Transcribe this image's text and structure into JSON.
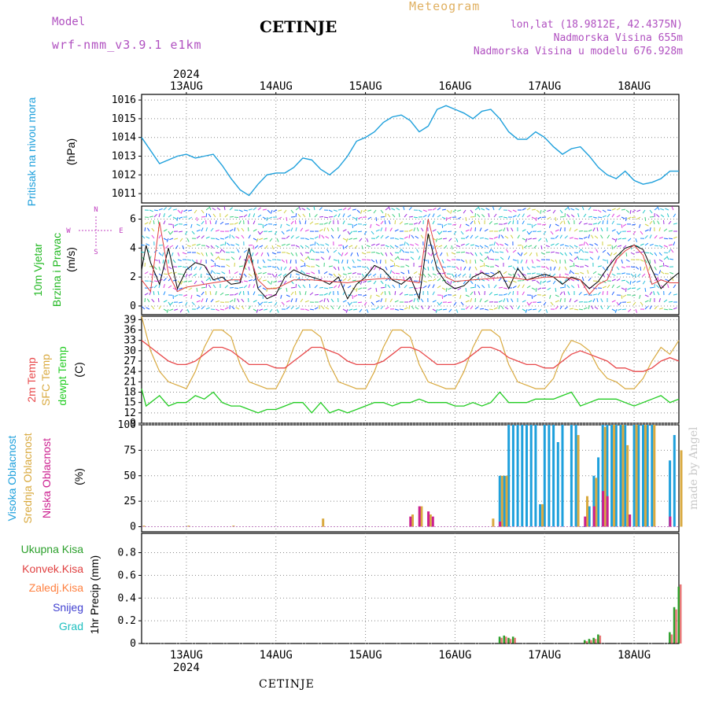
{
  "header": {
    "model_label": "Model",
    "model_name": "wrf-nmm_v3.9.1 e1km",
    "title": "CETINJE",
    "meteogram_label": "Meteogram",
    "lonlat": "lon,lat (18.9812E, 42.4375N)",
    "altitude": "Nadmorska Visina 655m",
    "model_altitude": "Nadmorska Visina u modelu 676.928m"
  },
  "footer": {
    "station": "CETINJE",
    "credit": "made by Angel"
  },
  "year": "2024",
  "dates": [
    "13AUG",
    "14AUG",
    "15AUG",
    "16AUG",
    "17AUG",
    "18AUG"
  ],
  "colors": {
    "pressure": "#1ea0dc",
    "wind_label": "#22b822",
    "temp2m": "#e8484a",
    "sfc": "#d9aa40",
    "dewpt": "#22cc22",
    "high_cloud": "#1ea0dc",
    "mid_cloud": "#d9aa40",
    "low_cloud": "#cc2090",
    "total_precip": "#2ca02c",
    "conv_precip": "#e04040",
    "frozen": "#ff8040",
    "snow": "#4040d0",
    "grad": "#20c0c0",
    "model_label": "#b050c0",
    "meteogram_label": "#e0b060",
    "credit": "#c8c8c8"
  },
  "panels": {
    "pressure": {
      "label": "Pritisak na nivou mora",
      "unit": "(hPa)",
      "ticks": [
        "1011",
        "1012",
        "1013",
        "1014",
        "1015",
        "1016"
      ]
    },
    "wind": {
      "label1": "10m Vjetar",
      "label2": "Brzina i Pravac",
      "unit": "(m/s)",
      "ticks": [
        "0",
        "2",
        "4",
        "6"
      ],
      "compass": {
        "n": "N",
        "s": "S",
        "e": "E",
        "w": "W"
      }
    },
    "temperature": {
      "label1": "2m Temp",
      "label2": "SFC Temp",
      "label3": "dewpt Temp",
      "unit": "(C)",
      "ticks": [
        "9",
        "12",
        "15",
        "18",
        "21",
        "24",
        "27",
        "30",
        "33",
        "36",
        "39"
      ]
    },
    "cloud": {
      "label1": "Visoka Oblacnost",
      "label2": "Srednja Oblacnost",
      "label3": "Niska Oblacnost",
      "unit": "(%)",
      "ticks": [
        "0",
        "25",
        "50",
        "75",
        "100"
      ]
    },
    "precip": {
      "legend": [
        "Ukupna Kisa",
        "Konvek.Kisa",
        "Zaledj.Kisa",
        "Snijeg",
        "Grad"
      ],
      "unit": "1hr Precip (mm)",
      "ticks": [
        "0",
        "0.2",
        "0.4",
        "0.6",
        "0.8"
      ]
    }
  },
  "chart_data": [
    {
      "panel": "pressure",
      "type": "line",
      "ylabel": "(hPa)",
      "ylim": [
        1010.5,
        1016.3
      ],
      "x_range_days": [
        12.5,
        18.5
      ],
      "series": [
        {
          "name": "Pritisak na nivou mora",
          "x": [
            12.5,
            12.7,
            12.9,
            13.0,
            13.1,
            13.2,
            13.3,
            13.4,
            13.5,
            13.6,
            13.7,
            13.8,
            13.9,
            14.0,
            14.1,
            14.2,
            14.3,
            14.4,
            14.5,
            14.6,
            14.7,
            14.8,
            14.9,
            15.0,
            15.1,
            15.2,
            15.3,
            15.4,
            15.5,
            15.6,
            15.7,
            15.8,
            15.9,
            16.0,
            16.1,
            16.2,
            16.3,
            16.4,
            16.5,
            16.6,
            16.7,
            16.8,
            16.9,
            17.0,
            17.1,
            17.2,
            17.3,
            17.4,
            17.5,
            17.6,
            17.7,
            17.8,
            17.9,
            18.0,
            18.1,
            18.2,
            18.3,
            18.4,
            18.5
          ],
          "values": [
            1014.0,
            1012.6,
            1013.0,
            1013.1,
            1012.9,
            1013.0,
            1013.1,
            1012.5,
            1011.8,
            1011.2,
            1010.9,
            1011.5,
            1012.0,
            1012.1,
            1012.1,
            1012.4,
            1012.9,
            1012.8,
            1012.3,
            1012.0,
            1012.4,
            1013.0,
            1013.8,
            1014.0,
            1014.3,
            1014.8,
            1015.1,
            1015.2,
            1014.9,
            1014.3,
            1014.6,
            1015.5,
            1015.7,
            1015.5,
            1015.3,
            1015.0,
            1015.4,
            1015.5,
            1015.0,
            1014.3,
            1013.9,
            1013.9,
            1014.3,
            1014.0,
            1013.5,
            1013.1,
            1013.4,
            1013.5,
            1013.0,
            1012.4,
            1012.0,
            1011.8,
            1012.2,
            1011.7,
            1011.5,
            1011.6,
            1011.8,
            1012.2,
            1012.2
          ]
        }
      ]
    },
    {
      "panel": "wind",
      "type": "line",
      "ylabel": "(m/s)",
      "ylim": [
        -0.6,
        6.9
      ],
      "series": [
        {
          "name": "model",
          "x": [
            12.5,
            12.55,
            12.6,
            12.7,
            12.8,
            12.9,
            13.0,
            13.1,
            13.2,
            13.3,
            13.4,
            13.5,
            13.6,
            13.7,
            13.8,
            13.9,
            14.0,
            14.1,
            14.2,
            14.3,
            14.4,
            14.5,
            14.6,
            14.7,
            14.8,
            14.9,
            15.0,
            15.1,
            15.2,
            15.3,
            15.4,
            15.5,
            15.6,
            15.7,
            15.8,
            15.9,
            16.0,
            16.1,
            16.2,
            16.3,
            16.4,
            16.5,
            16.6,
            16.7,
            16.8,
            16.9,
            17.0,
            17.1,
            17.2,
            17.3,
            17.4,
            17.5,
            17.6,
            17.7,
            17.8,
            17.9,
            18.0,
            18.1,
            18.2,
            18.3,
            18.4,
            18.5
          ],
          "values": [
            2.5,
            4.2,
            3.0,
            1.5,
            4.0,
            1.2,
            2.5,
            3.0,
            2.8,
            1.8,
            2.0,
            1.5,
            1.6,
            4.0,
            1.2,
            0.5,
            0.8,
            2.0,
            2.5,
            2.2,
            2.0,
            1.8,
            1.5,
            2.0,
            0.5,
            1.5,
            2.0,
            2.8,
            2.5,
            1.8,
            1.5,
            2.0,
            0.5,
            5.0,
            2.5,
            1.6,
            1.2,
            1.4,
            2.0,
            2.3,
            2.0,
            2.4,
            1.2,
            2.6,
            1.8,
            2.0,
            2.2,
            2.0,
            1.5,
            2.0,
            1.8,
            1.2,
            1.7,
            2.6,
            3.4,
            4.0,
            4.2,
            3.9,
            2.5,
            1.2,
            1.8,
            2.3
          ]
        },
        {
          "name": "gust",
          "x": [
            12.5,
            12.6,
            12.7,
            12.8,
            12.9,
            13.0,
            13.1,
            13.2,
            13.3,
            13.4,
            13.5,
            13.6,
            13.7,
            13.8,
            13.9,
            14.0,
            14.2,
            14.4,
            14.6,
            14.8,
            15.0,
            15.2,
            15.4,
            15.6,
            15.7,
            15.8,
            15.9,
            16.0,
            16.2,
            16.4,
            16.6,
            16.8,
            17.0,
            17.2,
            17.4,
            17.5,
            17.6,
            17.7,
            17.8,
            17.9,
            18.0,
            18.1,
            18.2,
            18.3,
            18.4,
            18.5
          ],
          "values": [
            1.8,
            1.0,
            5.8,
            2.2,
            1.0,
            1.3,
            1.4,
            1.5,
            1.6,
            1.7,
            1.8,
            1.8,
            3.5,
            1.8,
            1.2,
            1.2,
            1.8,
            1.8,
            1.7,
            1.6,
            1.8,
            1.9,
            1.8,
            1.6,
            6.0,
            3.5,
            2.0,
            1.7,
            1.8,
            1.9,
            2.0,
            1.8,
            2.0,
            2.0,
            1.8,
            0.8,
            1.5,
            1.8,
            3.2,
            3.8,
            4.2,
            3.5,
            1.5,
            1.8,
            1.6,
            1.6
          ]
        }
      ]
    },
    {
      "panel": "temperature",
      "type": "line",
      "ylabel": "(C)",
      "ylim": [
        9,
        40
      ],
      "series": [
        {
          "name": "2m Temp",
          "x": [
            12.5,
            12.6,
            12.7,
            12.8,
            12.9,
            13.0,
            13.1,
            13.2,
            13.3,
            13.4,
            13.5,
            13.6,
            13.7,
            13.8,
            13.9,
            14.0,
            14.1,
            14.2,
            14.3,
            14.4,
            14.5,
            14.6,
            14.7,
            14.8,
            14.9,
            15.0,
            15.1,
            15.2,
            15.3,
            15.4,
            15.5,
            15.6,
            15.7,
            15.8,
            15.9,
            16.0,
            16.1,
            16.2,
            16.3,
            16.4,
            16.5,
            16.6,
            16.7,
            16.8,
            16.9,
            17.0,
            17.1,
            17.2,
            17.3,
            17.4,
            17.5,
            17.6,
            17.7,
            17.8,
            17.9,
            18.0,
            18.1,
            18.2,
            18.3,
            18.4,
            18.5
          ],
          "values": [
            33,
            31,
            29,
            27,
            26,
            26,
            27,
            29,
            31,
            31,
            30,
            28,
            26,
            26,
            26,
            25,
            25,
            27,
            29,
            31,
            31,
            30,
            29,
            27,
            26,
            26,
            26,
            27,
            29,
            31,
            31,
            30,
            28,
            26,
            26,
            26,
            27,
            29,
            31,
            31,
            30,
            28,
            27,
            26,
            26,
            25,
            25,
            27,
            29,
            30,
            29,
            28,
            27,
            25,
            25,
            24,
            24,
            25,
            27,
            28,
            27
          ]
        },
        {
          "name": "SFC Temp",
          "x": [
            12.5,
            12.6,
            12.7,
            12.8,
            12.9,
            13.0,
            13.1,
            13.2,
            13.3,
            13.4,
            13.5,
            13.6,
            13.7,
            13.8,
            13.9,
            14.0,
            14.1,
            14.2,
            14.3,
            14.4,
            14.5,
            14.6,
            14.7,
            14.8,
            14.9,
            15.0,
            15.1,
            15.2,
            15.3,
            15.4,
            15.5,
            15.6,
            15.7,
            15.8,
            15.9,
            16.0,
            16.1,
            16.2,
            16.3,
            16.4,
            16.5,
            16.6,
            16.7,
            16.8,
            16.9,
            17.0,
            17.1,
            17.2,
            17.3,
            17.4,
            17.5,
            17.6,
            17.7,
            17.8,
            17.9,
            18.0,
            18.1,
            18.2,
            18.3,
            18.4,
            18.5
          ],
          "values": [
            40,
            30,
            24,
            21,
            20,
            19,
            24,
            31,
            36,
            36,
            34,
            26,
            21,
            20,
            19,
            19,
            24,
            31,
            36,
            36,
            34,
            26,
            21,
            20,
            19,
            19,
            24,
            31,
            36,
            36,
            34,
            26,
            21,
            20,
            19,
            19,
            24,
            31,
            36,
            36,
            34,
            26,
            21,
            20,
            19,
            19,
            22,
            29,
            33,
            32,
            30,
            25,
            22,
            21,
            19,
            19,
            22,
            27,
            31,
            29,
            33
          ]
        },
        {
          "name": "dewpt Temp",
          "x": [
            12.5,
            12.55,
            12.6,
            12.7,
            12.8,
            12.9,
            13.0,
            13.1,
            13.2,
            13.3,
            13.4,
            13.5,
            13.6,
            13.7,
            13.8,
            13.9,
            14.0,
            14.1,
            14.2,
            14.3,
            14.4,
            14.5,
            14.6,
            14.7,
            14.8,
            14.9,
            15.0,
            15.1,
            15.2,
            15.3,
            15.4,
            15.5,
            15.6,
            15.7,
            15.8,
            15.9,
            16.0,
            16.1,
            16.2,
            16.3,
            16.4,
            16.5,
            16.6,
            16.7,
            16.8,
            16.9,
            17.0,
            17.1,
            17.2,
            17.3,
            17.4,
            17.5,
            17.6,
            17.7,
            17.8,
            17.9,
            18.0,
            18.1,
            18.2,
            18.3,
            18.4,
            18.5
          ],
          "values": [
            19,
            14,
            15,
            17,
            14,
            15,
            15,
            17,
            16,
            18,
            15,
            14,
            14,
            13,
            12,
            13,
            13,
            14,
            15,
            15,
            12,
            15,
            12,
            13,
            12,
            13,
            14,
            15,
            15,
            14,
            15,
            15,
            16,
            15,
            15,
            15,
            14,
            14,
            15,
            14,
            15,
            18,
            15,
            15,
            15,
            16,
            16,
            16,
            17,
            18,
            14,
            15,
            16,
            16,
            16,
            15,
            14,
            15,
            16,
            17,
            15,
            16
          ]
        }
      ]
    },
    {
      "panel": "cloud",
      "type": "bar",
      "ylabel": "(%)",
      "ylim": [
        -5,
        100
      ],
      "series": [
        {
          "name": "Visoka Oblacnost",
          "x": [
            16.5,
            16.55,
            16.6,
            16.65,
            16.7,
            16.75,
            16.8,
            16.85,
            16.9,
            16.95,
            17.0,
            17.05,
            17.1,
            17.15,
            17.2,
            17.3,
            17.35,
            17.4,
            17.45,
            17.5,
            17.55,
            17.6,
            17.65,
            17.7,
            17.75,
            17.8,
            17.85,
            17.9,
            17.95,
            18.0,
            18.05,
            18.1,
            18.15,
            18.2,
            18.4,
            18.45
          ],
          "values": [
            50,
            50,
            100,
            100,
            100,
            100,
            100,
            100,
            100,
            22,
            100,
            100,
            100,
            83,
            100,
            100,
            100,
            0,
            0,
            20,
            50,
            68,
            100,
            100,
            100,
            100,
            100,
            100,
            12,
            100,
            100,
            100,
            100,
            100,
            65,
            90
          ]
        },
        {
          "name": "Srednja Oblacnost",
          "x": [
            12.5,
            13.0,
            13.5,
            14.5,
            15.5,
            15.6,
            15.7,
            16.4,
            16.5,
            16.55,
            16.95,
            17.35,
            17.45,
            17.55,
            17.65,
            17.75,
            17.85,
            17.9,
            18.0,
            18.1,
            18.2,
            18.5
          ],
          "values": [
            1,
            1,
            1,
            8,
            12,
            20,
            12,
            8,
            50,
            50,
            22,
            90,
            30,
            48,
            98,
            100,
            100,
            80,
            100,
            100,
            100,
            75
          ]
        },
        {
          "name": "Niska Oblacnost",
          "x": [
            15.45,
            15.55,
            15.65,
            15.7,
            16.45,
            17.4,
            17.5,
            17.6,
            17.65,
            17.9,
            18.35
          ],
          "values": [
            10,
            20,
            15,
            10,
            5,
            10,
            20,
            35,
            30,
            12,
            10
          ]
        }
      ]
    },
    {
      "panel": "precip",
      "type": "bar",
      "ylabel": "1hr Precip (mm)",
      "ylim": [
        0,
        0.97
      ],
      "series": [
        {
          "name": "Ukupna Kisa",
          "x": [
            16.5,
            16.55,
            16.6,
            16.65,
            17.45,
            17.5,
            17.55,
            17.6,
            18.4,
            18.45,
            18.5
          ],
          "values": [
            0.06,
            0.07,
            0.05,
            0.06,
            0.03,
            0.04,
            0.05,
            0.08,
            0.1,
            0.32,
            0.5
          ]
        },
        {
          "name": "Konvek.Kisa",
          "x": [
            16.5,
            16.55,
            16.6,
            16.65,
            17.45,
            17.5,
            17.55,
            17.6,
            18.4,
            18.45,
            18.5
          ],
          "values": [
            0.05,
            0.06,
            0.04,
            0.05,
            0.02,
            0.03,
            0.04,
            0.07,
            0.08,
            0.3,
            0.52
          ]
        }
      ]
    }
  ]
}
